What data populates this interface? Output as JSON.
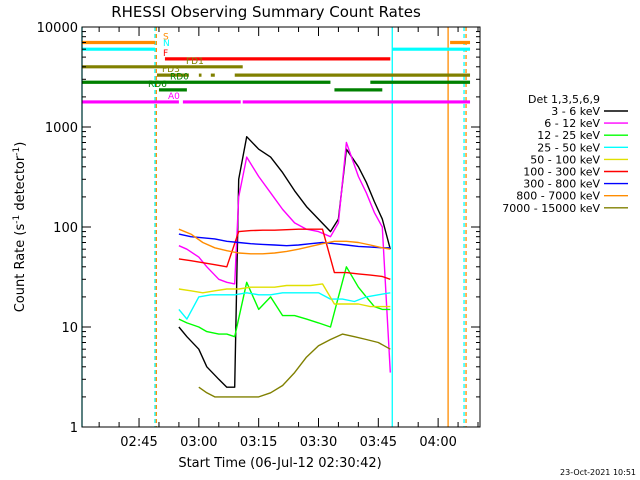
{
  "chart_data": {
    "type": "line",
    "title": "RHESSI Observing Summary Count Rates",
    "xlabel": "Start Time (06-Jul-12 02:30:42)",
    "ylabel_parts": [
      "Count Rate (s",
      "-1",
      " detector",
      "-1",
      ")"
    ],
    "yscale": "log",
    "ylim": [
      1,
      10000
    ],
    "xlim": [
      "02:30:42",
      "04:10:30"
    ],
    "x_ticks": [
      "02:45",
      "03:00",
      "03:15",
      "03:30",
      "03:45",
      "04:00"
    ],
    "y_ticks": [
      "1",
      "10",
      "100",
      "1000",
      "10000"
    ],
    "footer": "23-Oct-2021 10:51",
    "legend": {
      "title": "Det 1,3,5,6,9",
      "placement": "right",
      "entries": [
        {
          "label": "3 - 6 keV",
          "color": "#000000"
        },
        {
          "label": "6 - 12 keV",
          "color": "#ff00ff"
        },
        {
          "label": "12 - 25 keV",
          "color": "#00ff00"
        },
        {
          "label": "25 - 50 keV",
          "color": "#00ffff"
        },
        {
          "label": "50 - 100 keV",
          "color": "#e0e000"
        },
        {
          "label": "100 - 300 keV",
          "color": "#ff0000"
        },
        {
          "label": "300 - 800 keV",
          "color": "#0000ff"
        },
        {
          "label": "800 - 7000 keV",
          "color": "#ff8c00"
        },
        {
          "label": "7000 - 15000 keV",
          "color": "#808000"
        }
      ]
    },
    "flag_bars": [
      {
        "label": "S",
        "color": "#ff8c00",
        "value": 7000,
        "segments": [
          [
            "02:30:42",
            "02:49:00"
          ],
          [
            "04:03:00",
            "04:08:00"
          ]
        ]
      },
      {
        "label": "N",
        "color": "#00ffff",
        "value": 6000,
        "segments": [
          [
            "02:30:42",
            "02:49:00"
          ],
          [
            "03:48:30",
            "04:08:00"
          ]
        ]
      },
      {
        "label": "F",
        "color": "#ff0000",
        "value": 4800,
        "segments": [
          [
            "02:51:30",
            "03:48:00"
          ]
        ]
      },
      {
        "label": "FD1",
        "color": "#808000",
        "value": 4000,
        "segments": [
          [
            "02:30:42",
            "03:11:00"
          ]
        ]
      },
      {
        "label": "FD3",
        "color": "#808000",
        "value": 3300,
        "segments": [
          [
            "02:49:30",
            "02:57:30"
          ],
          [
            "03:00:00",
            "03:00:40"
          ],
          [
            "03:03:00",
            "03:04:00"
          ],
          [
            "03:09:00",
            "04:08:00"
          ]
        ]
      },
      {
        "label": "RD0",
        "color": "#008000",
        "value": 2800,
        "segments": [
          [
            "02:30:42",
            "03:33:00"
          ],
          [
            "03:43:00",
            "04:08:00"
          ]
        ]
      },
      {
        "label": "RD6",
        "color": "#008000",
        "value": 2350,
        "segments": [
          [
            "02:50:00",
            "02:57:00"
          ],
          [
            "03:34:00",
            "03:46:00"
          ]
        ]
      },
      {
        "label": "A0",
        "color": "#ff00ff",
        "value": 1780,
        "segments": [
          [
            "02:30:42",
            "02:55:00"
          ],
          [
            "02:56:00",
            "03:10:30"
          ],
          [
            "03:11:00",
            "04:08:00"
          ]
        ]
      }
    ],
    "vertical_lines": [
      {
        "time": "02:30:42",
        "color": "#00ffff",
        "dashed": false
      },
      {
        "time": "02:49:00",
        "color": "#00ffff",
        "dashed": true
      },
      {
        "time": "02:49:20",
        "color": "#ff8c00",
        "dashed": true
      },
      {
        "time": "03:48:30",
        "color": "#00ffff",
        "dashed": false
      },
      {
        "time": "04:02:30",
        "color": "#ff8c00",
        "dashed": false
      },
      {
        "time": "04:06:30",
        "color": "#00ffff",
        "dashed": true
      },
      {
        "time": "04:07:00",
        "color": "#ff8c00",
        "dashed": true
      }
    ],
    "series": [
      {
        "name": "3 - 6 keV",
        "color": "#000000",
        "x": [
          "02:55",
          "02:57",
          "03:00",
          "03:02",
          "03:05",
          "03:07",
          "03:09",
          "03:10",
          "03:12",
          "03:15",
          "03:18",
          "03:21",
          "03:24",
          "03:27",
          "03:30",
          "03:33",
          "03:35",
          "03:37",
          "03:40",
          "03:42",
          "03:44",
          "03:46",
          "03:48"
        ],
        "y": [
          10,
          8,
          6,
          4,
          3,
          2.5,
          2.5,
          300,
          800,
          600,
          500,
          350,
          230,
          160,
          120,
          90,
          120,
          600,
          400,
          280,
          180,
          120,
          60
        ]
      },
      {
        "name": "6 - 12 keV",
        "color": "#ff00ff",
        "x": [
          "02:55",
          "02:57",
          "03:00",
          "03:02",
          "03:05",
          "03:07",
          "03:09",
          "03:10",
          "03:12",
          "03:15",
          "03:18",
          "03:21",
          "03:24",
          "03:27",
          "03:30",
          "03:33",
          "03:35",
          "03:37",
          "03:40",
          "03:42",
          "03:44",
          "03:46",
          "03:48"
        ],
        "y": [
          65,
          60,
          50,
          40,
          30,
          28,
          27,
          200,
          500,
          320,
          220,
          150,
          110,
          95,
          90,
          80,
          110,
          700,
          320,
          220,
          140,
          100,
          3.5
        ]
      },
      {
        "name": "12 - 25 keV",
        "color": "#00ff00",
        "x": [
          "02:55",
          "02:57",
          "03:00",
          "03:02",
          "03:05",
          "03:07",
          "03:09",
          "03:12",
          "03:15",
          "03:18",
          "03:21",
          "03:24",
          "03:27",
          "03:30",
          "03:33",
          "03:35",
          "03:37",
          "03:40",
          "03:42",
          "03:44",
          "03:46",
          "03:48"
        ],
        "y": [
          12,
          11,
          10,
          9,
          8.5,
          8.5,
          8,
          28,
          15,
          20,
          13,
          13,
          12,
          11,
          10,
          20,
          40,
          25,
          20,
          16,
          15,
          15
        ]
      },
      {
        "name": "25 - 50 keV",
        "color": "#00ffff",
        "x": [
          "02:55",
          "02:57",
          "03:00",
          "03:03",
          "03:06",
          "03:09",
          "03:12",
          "03:15",
          "03:18",
          "03:21",
          "03:24",
          "03:27",
          "03:30",
          "03:33",
          "03:36",
          "03:39",
          "03:42",
          "03:45",
          "03:48"
        ],
        "y": [
          15,
          12,
          20,
          21,
          21,
          21,
          22,
          21,
          21,
          22,
          22,
          22,
          22,
          19,
          19,
          18,
          20,
          21,
          22
        ]
      },
      {
        "name": "50 - 100 keV",
        "color": "#e0e000",
        "x": [
          "02:55",
          "02:58",
          "03:01",
          "03:04",
          "03:07",
          "03:10",
          "03:13",
          "03:16",
          "03:19",
          "03:22",
          "03:25",
          "03:28",
          "03:31",
          "03:34",
          "03:37",
          "03:40",
          "03:43",
          "03:46",
          "03:48"
        ],
        "y": [
          24,
          23,
          22,
          23,
          24,
          24,
          25,
          25,
          25,
          26,
          26,
          26,
          27,
          17,
          17,
          17,
          16,
          16,
          16
        ]
      },
      {
        "name": "100 - 300 keV",
        "color": "#ff0000",
        "x": [
          "02:55",
          "02:58",
          "03:01",
          "03:04",
          "03:07",
          "03:10",
          "03:13",
          "03:16",
          "03:19",
          "03:22",
          "03:25",
          "03:28",
          "03:31",
          "03:34",
          "03:37",
          "03:40",
          "03:43",
          "03:46",
          "03:48"
        ],
        "y": [
          48,
          46,
          44,
          42,
          40,
          90,
          92,
          93,
          93,
          94,
          95,
          95,
          95,
          35,
          35,
          34,
          33,
          32,
          30
        ]
      },
      {
        "name": "300 - 800 keV",
        "color": "#0000ff",
        "x": [
          "02:55",
          "02:58",
          "03:01",
          "03:04",
          "03:07",
          "03:10",
          "03:13",
          "03:16",
          "03:19",
          "03:22",
          "03:25",
          "03:28",
          "03:31",
          "03:34",
          "03:37",
          "03:40",
          "03:43",
          "03:46",
          "03:48"
        ],
        "y": [
          85,
          80,
          78,
          76,
          72,
          70,
          68,
          67,
          66,
          65,
          66,
          68,
          70,
          68,
          66,
          64,
          63,
          62,
          62
        ]
      },
      {
        "name": "800 - 7000 keV",
        "color": "#ff8c00",
        "x": [
          "02:55",
          "02:58",
          "03:01",
          "03:04",
          "03:07",
          "03:10",
          "03:13",
          "03:16",
          "03:19",
          "03:22",
          "03:25",
          "03:28",
          "03:31",
          "03:34",
          "03:37",
          "03:40",
          "03:43",
          "03:46",
          "03:48"
        ],
        "y": [
          95,
          85,
          70,
          62,
          58,
          55,
          54,
          54,
          55,
          57,
          60,
          64,
          68,
          72,
          72,
          70,
          66,
          62,
          60
        ]
      },
      {
        "name": "7000 - 15000 keV",
        "color": "#808000",
        "x": [
          "03:00",
          "03:02",
          "03:04",
          "03:06",
          "03:09",
          "03:12",
          "03:15",
          "03:18",
          "03:21",
          "03:24",
          "03:27",
          "03:30",
          "03:33",
          "03:36",
          "03:39",
          "03:42",
          "03:45",
          "03:48"
        ],
        "y": [
          2.5,
          2.2,
          2,
          2,
          2,
          2,
          2,
          2.2,
          2.6,
          3.5,
          5,
          6.5,
          7.5,
          8.5,
          8,
          7.5,
          7,
          6
        ]
      }
    ]
  }
}
